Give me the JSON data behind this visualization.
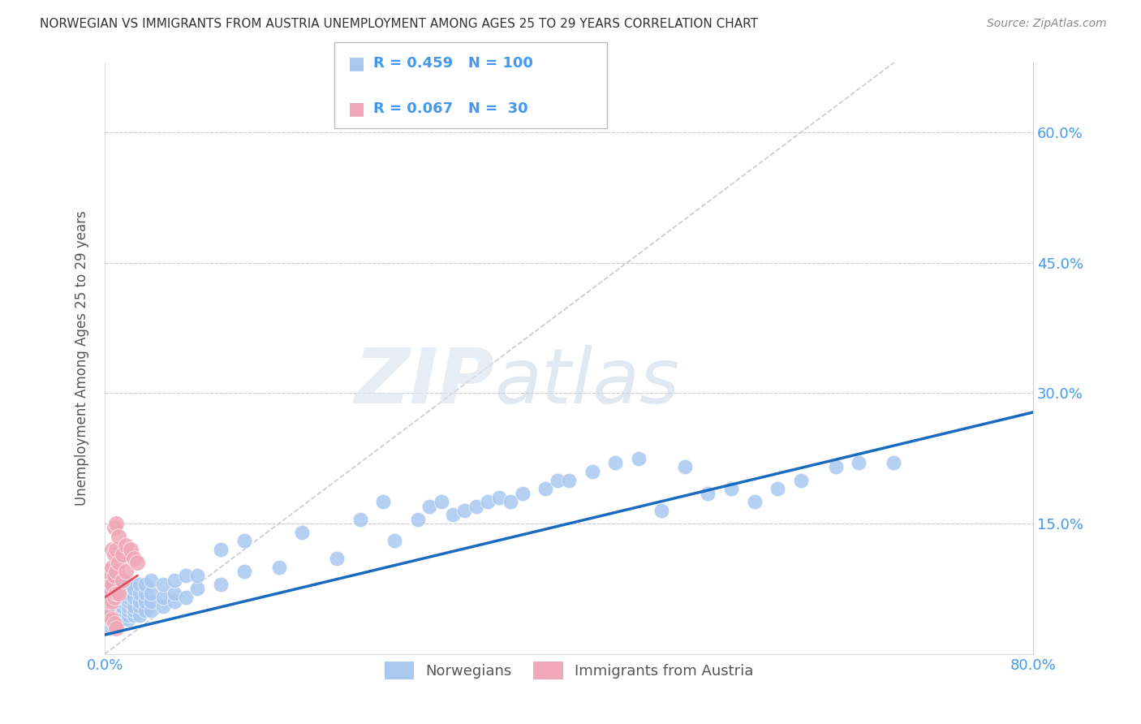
{
  "title": "NORWEGIAN VS IMMIGRANTS FROM AUSTRIA UNEMPLOYMENT AMONG AGES 25 TO 29 YEARS CORRELATION CHART",
  "source": "Source: ZipAtlas.com",
  "ylabel": "Unemployment Among Ages 25 to 29 years",
  "xlim": [
    0.0,
    0.8
  ],
  "ylim": [
    0.0,
    0.68
  ],
  "xticks": [
    0.0,
    0.1,
    0.2,
    0.3,
    0.4,
    0.5,
    0.6,
    0.7,
    0.8
  ],
  "yticks": [
    0.0,
    0.15,
    0.3,
    0.45,
    0.6
  ],
  "legend_labels": [
    "Norwegians",
    "Immigrants from Austria"
  ],
  "R_norwegian": 0.459,
  "N_norwegian": 100,
  "R_austria": 0.067,
  "N_austria": 30,
  "norwegian_color": "#a8c8f0",
  "austria_color": "#f0a8b8",
  "norwegian_line_color": "#1a6bbf",
  "austria_line_color": "#e05060",
  "ref_line_color": "#c8c8d8",
  "watermark_zip": "ZIP",
  "watermark_atlas": "atlas",
  "title_color": "#333333",
  "axis_label_color": "#555555",
  "tick_color": "#4499ee",
  "norwegian_scatter_x": [
    0.005,
    0.005,
    0.005,
    0.005,
    0.005,
    0.005,
    0.005,
    0.005,
    0.005,
    0.005,
    0.01,
    0.01,
    0.01,
    0.01,
    0.01,
    0.01,
    0.01,
    0.01,
    0.01,
    0.01,
    0.015,
    0.015,
    0.015,
    0.015,
    0.015,
    0.015,
    0.015,
    0.015,
    0.02,
    0.02,
    0.02,
    0.02,
    0.02,
    0.02,
    0.02,
    0.02,
    0.025,
    0.025,
    0.025,
    0.025,
    0.025,
    0.03,
    0.03,
    0.03,
    0.03,
    0.03,
    0.035,
    0.035,
    0.035,
    0.035,
    0.04,
    0.04,
    0.04,
    0.04,
    0.05,
    0.05,
    0.05,
    0.06,
    0.06,
    0.06,
    0.07,
    0.07,
    0.08,
    0.08,
    0.1,
    0.1,
    0.12,
    0.12,
    0.15,
    0.17,
    0.2,
    0.22,
    0.24,
    0.25,
    0.27,
    0.28,
    0.29,
    0.3,
    0.31,
    0.32,
    0.33,
    0.34,
    0.35,
    0.36,
    0.38,
    0.39,
    0.4,
    0.42,
    0.44,
    0.46,
    0.48,
    0.5,
    0.52,
    0.54,
    0.56,
    0.58,
    0.6,
    0.63,
    0.65,
    0.68
  ],
  "norwegian_scatter_y": [
    0.03,
    0.04,
    0.045,
    0.05,
    0.055,
    0.06,
    0.065,
    0.07,
    0.075,
    0.08,
    0.035,
    0.04,
    0.045,
    0.05,
    0.055,
    0.06,
    0.065,
    0.07,
    0.075,
    0.08,
    0.04,
    0.045,
    0.05,
    0.055,
    0.06,
    0.065,
    0.07,
    0.075,
    0.04,
    0.045,
    0.05,
    0.055,
    0.06,
    0.065,
    0.07,
    0.08,
    0.045,
    0.05,
    0.055,
    0.065,
    0.075,
    0.045,
    0.055,
    0.06,
    0.07,
    0.08,
    0.05,
    0.06,
    0.07,
    0.08,
    0.05,
    0.06,
    0.07,
    0.085,
    0.055,
    0.065,
    0.08,
    0.06,
    0.07,
    0.085,
    0.065,
    0.09,
    0.075,
    0.09,
    0.08,
    0.12,
    0.095,
    0.13,
    0.1,
    0.14,
    0.11,
    0.155,
    0.175,
    0.13,
    0.155,
    0.17,
    0.175,
    0.16,
    0.165,
    0.17,
    0.175,
    0.18,
    0.175,
    0.185,
    0.19,
    0.2,
    0.2,
    0.21,
    0.22,
    0.225,
    0.165,
    0.215,
    0.185,
    0.19,
    0.175,
    0.19,
    0.2,
    0.215,
    0.22,
    0.22
  ],
  "austria_scatter_x": [
    0.003,
    0.003,
    0.003,
    0.003,
    0.003,
    0.006,
    0.006,
    0.006,
    0.006,
    0.006,
    0.008,
    0.008,
    0.008,
    0.008,
    0.008,
    0.01,
    0.01,
    0.01,
    0.01,
    0.01,
    0.012,
    0.012,
    0.012,
    0.015,
    0.015,
    0.018,
    0.018,
    0.022,
    0.025,
    0.028
  ],
  "austria_scatter_y": [
    0.045,
    0.06,
    0.075,
    0.085,
    0.095,
    0.04,
    0.06,
    0.08,
    0.1,
    0.12,
    0.035,
    0.065,
    0.09,
    0.115,
    0.145,
    0.03,
    0.07,
    0.095,
    0.12,
    0.15,
    0.07,
    0.105,
    0.135,
    0.085,
    0.115,
    0.095,
    0.125,
    0.12,
    0.11,
    0.105
  ],
  "nor_line_x0": 0.0,
  "nor_line_y0": 0.022,
  "nor_line_x1": 0.8,
  "nor_line_y1": 0.278,
  "aut_line_x0": 0.0,
  "aut_line_y0": 0.065,
  "aut_line_x1": 0.028,
  "aut_line_y1": 0.09
}
